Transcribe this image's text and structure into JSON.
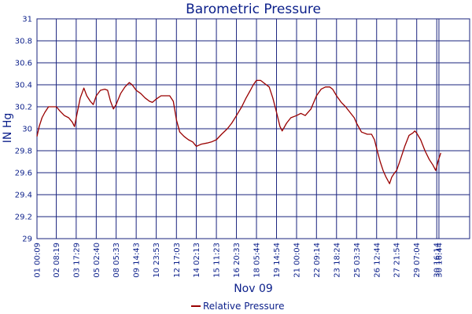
{
  "chart_data": {
    "type": "line",
    "title": "Barometric Pressure",
    "xlabel": "Nov 09",
    "ylabel": "IN Hg",
    "ylim": [
      29,
      31
    ],
    "yticks": [
      "29",
      "29.2",
      "29.4",
      "29.6",
      "29.8",
      "30",
      "30.2",
      "30.4",
      "30.6",
      "30.8",
      "31"
    ],
    "xlim": [
      0,
      30.0
    ],
    "xticks": [
      {
        "x": 0.0,
        "label": "01 00:09"
      },
      {
        "x": 1.34,
        "label": "02 08:19"
      },
      {
        "x": 2.72,
        "label": "03 17:29"
      },
      {
        "x": 4.11,
        "label": "05 02:40"
      },
      {
        "x": 5.49,
        "label": "08 05:33"
      },
      {
        "x": 6.88,
        "label": "09 14:43"
      },
      {
        "x": 8.27,
        "label": "10 23:53"
      },
      {
        "x": 9.67,
        "label": "12 17:03"
      },
      {
        "x": 11.05,
        "label": "14 02:13"
      },
      {
        "x": 12.44,
        "label": "15 11:23"
      },
      {
        "x": 13.83,
        "label": "16 20:33"
      },
      {
        "x": 15.22,
        "label": "18 05:44"
      },
      {
        "x": 16.61,
        "label": "19 14:54"
      },
      {
        "x": 18.0,
        "label": "21 00:04"
      },
      {
        "x": 19.38,
        "label": "22 09:14"
      },
      {
        "x": 20.77,
        "label": "23 18:24"
      },
      {
        "x": 22.16,
        "label": "25 03:34"
      },
      {
        "x": 23.55,
        "label": "26 12:44"
      },
      {
        "x": 24.94,
        "label": "27 21:54"
      },
      {
        "x": 26.33,
        "label": "29 07:04"
      },
      {
        "x": 27.72,
        "label": "30 16:14"
      },
      {
        "x": 27.87,
        "label": "30 16:44"
      }
    ],
    "grid": true,
    "legend": "bottom-center",
    "series": [
      {
        "name": "Relative Pressure",
        "color": "#990000",
        "points": [
          [
            0.0,
            29.93
          ],
          [
            0.15,
            30.02
          ],
          [
            0.35,
            30.1
          ],
          [
            0.55,
            30.15
          ],
          [
            0.8,
            30.2
          ],
          [
            1.05,
            30.2
          ],
          [
            1.34,
            30.2
          ],
          [
            1.6,
            30.16
          ],
          [
            1.9,
            30.12
          ],
          [
            2.2,
            30.1
          ],
          [
            2.45,
            30.06
          ],
          [
            2.6,
            30.02
          ],
          [
            2.72,
            30.1
          ],
          [
            3.0,
            30.28
          ],
          [
            3.25,
            30.37
          ],
          [
            3.45,
            30.3
          ],
          [
            3.7,
            30.25
          ],
          [
            3.9,
            30.22
          ],
          [
            4.11,
            30.3
          ],
          [
            4.4,
            30.35
          ],
          [
            4.7,
            30.36
          ],
          [
            4.9,
            30.35
          ],
          [
            5.1,
            30.25
          ],
          [
            5.3,
            30.18
          ],
          [
            5.49,
            30.22
          ],
          [
            5.8,
            30.32
          ],
          [
            6.1,
            30.38
          ],
          [
            6.4,
            30.42
          ],
          [
            6.6,
            30.4
          ],
          [
            6.88,
            30.35
          ],
          [
            7.2,
            30.32
          ],
          [
            7.5,
            30.28
          ],
          [
            7.8,
            30.25
          ],
          [
            8.0,
            30.24
          ],
          [
            8.27,
            30.27
          ],
          [
            8.6,
            30.3
          ],
          [
            8.9,
            30.3
          ],
          [
            9.2,
            30.3
          ],
          [
            9.45,
            30.25
          ],
          [
            9.67,
            30.08
          ],
          [
            9.9,
            29.97
          ],
          [
            10.2,
            29.93
          ],
          [
            10.5,
            29.9
          ],
          [
            10.8,
            29.88
          ],
          [
            11.05,
            29.84
          ],
          [
            11.4,
            29.86
          ],
          [
            11.8,
            29.87
          ],
          [
            12.1,
            29.88
          ],
          [
            12.44,
            29.9
          ],
          [
            12.8,
            29.95
          ],
          [
            13.2,
            30.0
          ],
          [
            13.5,
            30.05
          ],
          [
            13.83,
            30.12
          ],
          [
            14.2,
            30.2
          ],
          [
            14.5,
            30.28
          ],
          [
            14.8,
            30.35
          ],
          [
            15.0,
            30.4
          ],
          [
            15.22,
            30.44
          ],
          [
            15.5,
            30.44
          ],
          [
            15.8,
            30.41
          ],
          [
            16.1,
            30.38
          ],
          [
            16.35,
            30.28
          ],
          [
            16.61,
            30.15
          ],
          [
            16.85,
            30.02
          ],
          [
            17.0,
            29.98
          ],
          [
            17.3,
            30.05
          ],
          [
            17.6,
            30.1
          ],
          [
            18.0,
            30.12
          ],
          [
            18.3,
            30.14
          ],
          [
            18.6,
            30.12
          ],
          [
            19.0,
            30.18
          ],
          [
            19.38,
            30.3
          ],
          [
            19.7,
            30.36
          ],
          [
            20.0,
            30.38
          ],
          [
            20.3,
            30.38
          ],
          [
            20.5,
            30.36
          ],
          [
            20.77,
            30.3
          ],
          [
            21.1,
            30.24
          ],
          [
            21.4,
            30.2
          ],
          [
            21.7,
            30.15
          ],
          [
            22.0,
            30.1
          ],
          [
            22.16,
            30.05
          ],
          [
            22.5,
            29.97
          ],
          [
            22.9,
            29.95
          ],
          [
            23.2,
            29.95
          ],
          [
            23.4,
            29.9
          ],
          [
            23.55,
            29.82
          ],
          [
            23.8,
            29.7
          ],
          [
            24.0,
            29.62
          ],
          [
            24.2,
            29.56
          ],
          [
            24.45,
            29.5
          ],
          [
            24.6,
            29.56
          ],
          [
            24.8,
            29.6
          ],
          [
            24.94,
            29.62
          ],
          [
            25.2,
            29.72
          ],
          [
            25.5,
            29.84
          ],
          [
            25.8,
            29.94
          ],
          [
            26.05,
            29.96
          ],
          [
            26.2,
            29.98
          ],
          [
            26.33,
            29.96
          ],
          [
            26.6,
            29.9
          ],
          [
            26.9,
            29.8
          ],
          [
            27.2,
            29.72
          ],
          [
            27.45,
            29.67
          ],
          [
            27.65,
            29.62
          ],
          [
            27.8,
            29.7
          ],
          [
            28.0,
            29.78
          ]
        ]
      }
    ]
  }
}
